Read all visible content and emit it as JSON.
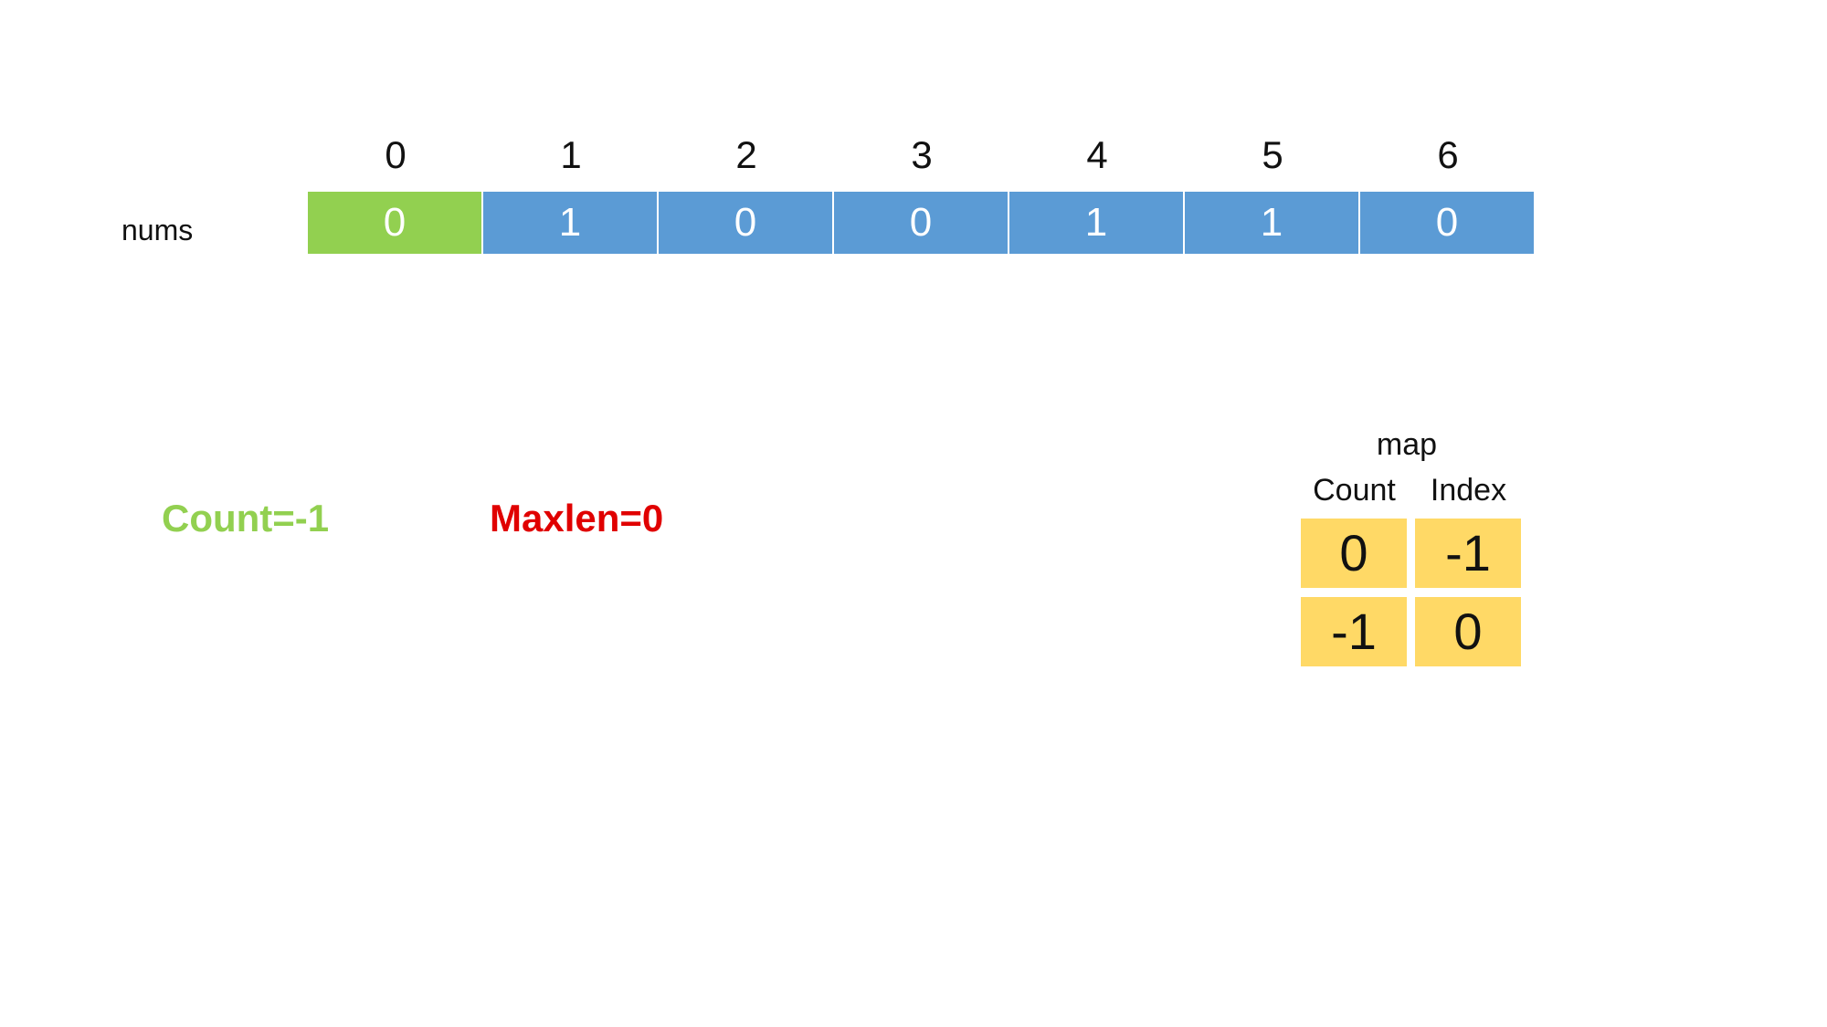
{
  "array": {
    "label": "nums",
    "indices": [
      "0",
      "1",
      "2",
      "3",
      "4",
      "5",
      "6"
    ],
    "values": [
      "0",
      "1",
      "0",
      "0",
      "1",
      "1",
      "0"
    ],
    "active_index": 0,
    "colors": {
      "cell": "#5b9bd5",
      "active": "#92d050",
      "text": "#ffffff"
    }
  },
  "status": {
    "count": "Count=-1",
    "maxlen": "Maxlen=0",
    "colors": {
      "count": "#92d050",
      "maxlen": "#e00000"
    }
  },
  "map": {
    "title": "map",
    "headers": [
      "Count",
      "Index"
    ],
    "rows": [
      [
        "0",
        "-1"
      ],
      [
        "-1",
        "0"
      ]
    ],
    "color": "#ffd966"
  }
}
